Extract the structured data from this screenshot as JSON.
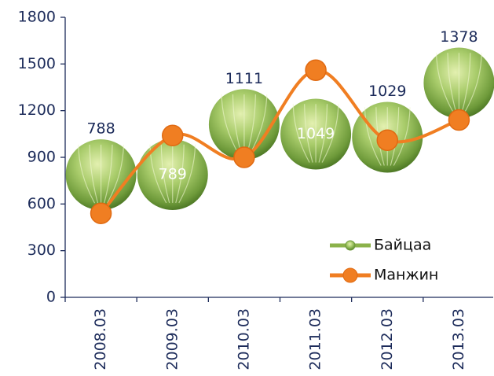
{
  "chart_data": {
    "type": "line",
    "categories": [
      "2008.03",
      "2009.03",
      "2010.03",
      "2011.03",
      "2012.03",
      "2013.03"
    ],
    "series": [
      {
        "name": "Байцаа",
        "color": "#8bb24a",
        "show_line": false,
        "marker": "cabbage",
        "values": [
          788,
          789,
          1111,
          1049,
          1029,
          1378
        ]
      },
      {
        "name": "Манжин",
        "color": "#f07e22",
        "show_line": true,
        "marker": "circle",
        "values": [
          540,
          1040,
          900,
          1460,
          1010,
          1140
        ]
      }
    ],
    "ylim": [
      0,
      1800
    ],
    "yticks": [
      0,
      300,
      600,
      900,
      1200,
      1500,
      1800
    ],
    "legend": "lower right"
  }
}
